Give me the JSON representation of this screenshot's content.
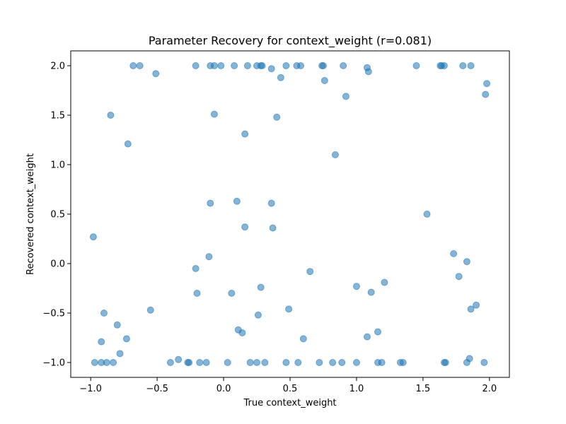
{
  "chart_data": {
    "type": "scatter",
    "title": "Parameter Recovery for context_weight (r=0.081)",
    "xlabel": "True context_weight",
    "ylabel": "Recovered context_weight",
    "xlim": [
      -1.15,
      2.15
    ],
    "ylim": [
      -1.15,
      2.15
    ],
    "xticks": [
      -1.0,
      -0.5,
      0.0,
      0.5,
      1.0,
      1.5,
      2.0
    ],
    "xtick_labels": [
      "−1.0",
      "−0.5",
      "0.0",
      "0.5",
      "1.0",
      "1.5",
      "2.0"
    ],
    "yticks": [
      -1.0,
      -0.5,
      0.0,
      0.5,
      1.0,
      1.5,
      2.0
    ],
    "ytick_labels": [
      "−1.0",
      "−0.5",
      "0.0",
      "0.5",
      "1.0",
      "1.5",
      "2.0"
    ],
    "grid": false,
    "marker_color": "#1f77b4",
    "marker_alpha": 0.55,
    "points": [
      [
        -0.68,
        2.0
      ],
      [
        -0.63,
        2.0
      ],
      [
        -0.51,
        1.92
      ],
      [
        -0.21,
        2.0
      ],
      [
        -0.1,
        2.0
      ],
      [
        -0.07,
        2.0
      ],
      [
        -0.02,
        2.0
      ],
      [
        0.08,
        2.0
      ],
      [
        0.18,
        2.0
      ],
      [
        0.25,
        2.0
      ],
      [
        0.28,
        2.0
      ],
      [
        0.29,
        2.0
      ],
      [
        0.36,
        1.97
      ],
      [
        0.43,
        1.88
      ],
      [
        0.47,
        2.0
      ],
      [
        0.55,
        2.0
      ],
      [
        0.58,
        2.0
      ],
      [
        0.74,
        2.0
      ],
      [
        0.75,
        2.0
      ],
      [
        0.76,
        1.85
      ],
      [
        0.9,
        2.0
      ],
      [
        0.92,
        1.69
      ],
      [
        1.08,
        1.98
      ],
      [
        1.09,
        1.94
      ],
      [
        1.45,
        2.0
      ],
      [
        1.63,
        2.0
      ],
      [
        1.64,
        2.0
      ],
      [
        1.66,
        2.0
      ],
      [
        1.8,
        2.0
      ],
      [
        1.86,
        2.0
      ],
      [
        1.98,
        1.82
      ],
      [
        1.97,
        1.71
      ],
      [
        -0.85,
        1.5
      ],
      [
        -0.07,
        1.51
      ],
      [
        0.16,
        1.31
      ],
      [
        0.4,
        1.48
      ],
      [
        -0.72,
        1.21
      ],
      [
        0.84,
        1.1
      ],
      [
        -0.1,
        0.61
      ],
      [
        0.1,
        0.63
      ],
      [
        0.16,
        0.37
      ],
      [
        0.36,
        0.61
      ],
      [
        0.37,
        0.36
      ],
      [
        1.53,
        0.5
      ],
      [
        -0.98,
        0.27
      ],
      [
        -0.11,
        0.07
      ],
      [
        1.73,
        0.1
      ],
      [
        1.83,
        0.02
      ],
      [
        -0.21,
        -0.05
      ],
      [
        0.65,
        -0.08
      ],
      [
        1.77,
        -0.13
      ],
      [
        -0.2,
        -0.3
      ],
      [
        0.06,
        -0.3
      ],
      [
        0.28,
        -0.24
      ],
      [
        1.0,
        -0.23
      ],
      [
        1.11,
        -0.29
      ],
      [
        1.21,
        -0.19
      ],
      [
        1.9,
        -0.42
      ],
      [
        1.86,
        -0.46
      ],
      [
        -0.9,
        -0.5
      ],
      [
        -0.55,
        -0.47
      ],
      [
        0.26,
        -0.52
      ],
      [
        0.49,
        -0.46
      ],
      [
        -0.8,
        -0.62
      ],
      [
        0.11,
        -0.67
      ],
      [
        0.14,
        -0.7
      ],
      [
        1.08,
        -0.74
      ],
      [
        1.16,
        -0.69
      ],
      [
        -0.73,
        -0.76
      ],
      [
        0.6,
        -0.76
      ],
      [
        -0.92,
        -0.79
      ],
      [
        -0.78,
        -0.91
      ],
      [
        -0.97,
        -1.0
      ],
      [
        -0.92,
        -1.0
      ],
      [
        -0.88,
        -1.0
      ],
      [
        -0.83,
        -1.0
      ],
      [
        -0.4,
        -1.0
      ],
      [
        -0.34,
        -0.97
      ],
      [
        -0.27,
        -1.0
      ],
      [
        -0.26,
        -1.0
      ],
      [
        -0.18,
        -1.0
      ],
      [
        -0.13,
        -1.0
      ],
      [
        0.03,
        -1.0
      ],
      [
        0.2,
        -1.0
      ],
      [
        0.25,
        -1.0
      ],
      [
        0.31,
        -1.0
      ],
      [
        0.47,
        -1.0
      ],
      [
        0.56,
        -1.0
      ],
      [
        0.72,
        -1.0
      ],
      [
        0.82,
        -1.0
      ],
      [
        0.89,
        -1.0
      ],
      [
        1.0,
        -1.0
      ],
      [
        1.16,
        -1.0
      ],
      [
        1.19,
        -1.0
      ],
      [
        1.33,
        -1.0
      ],
      [
        1.35,
        -1.0
      ],
      [
        1.66,
        -1.0
      ],
      [
        1.67,
        -1.0
      ],
      [
        1.83,
        -1.0
      ],
      [
        1.85,
        -0.96
      ],
      [
        1.96,
        -1.0
      ]
    ]
  }
}
